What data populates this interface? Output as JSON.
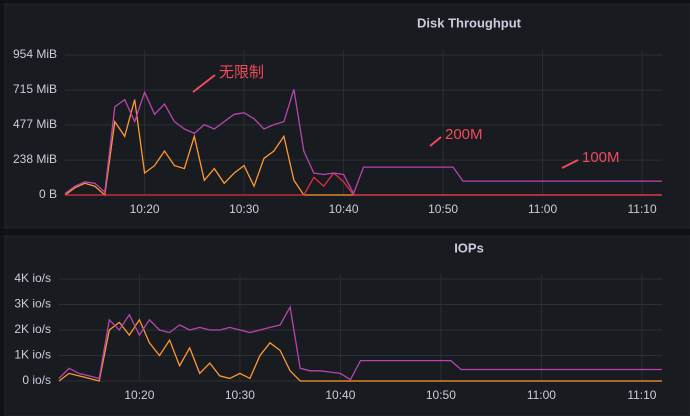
{
  "chart_data": [
    {
      "type": "line",
      "title": "Disk Throughput",
      "x": [
        612,
        613,
        614,
        615,
        616,
        617,
        618,
        619,
        620,
        621,
        622,
        623,
        624,
        625,
        626,
        627,
        628,
        629,
        630,
        631,
        632,
        633,
        634,
        635,
        636,
        637,
        638,
        639,
        640,
        641,
        642,
        643,
        644,
        645,
        646,
        647,
        648,
        649,
        650,
        651,
        652,
        653,
        654,
        655,
        656,
        657,
        658,
        659,
        660,
        661,
        662,
        663,
        664,
        665,
        666,
        667,
        668,
        669,
        670,
        671,
        672
      ],
      "xlim": [
        612,
        672
      ],
      "xticks": [
        {
          "value": 620,
          "label": "10:20"
        },
        {
          "value": 630,
          "label": "10:30"
        },
        {
          "value": 640,
          "label": "10:40"
        },
        {
          "value": 650,
          "label": "10:50"
        },
        {
          "value": 660,
          "label": "11:00"
        },
        {
          "value": 670,
          "label": "11:10"
        }
      ],
      "ylim": [
        0,
        954
      ],
      "yticks": [
        {
          "value": 0,
          "label": "0 B"
        },
        {
          "value": 238,
          "label": "238 MiB"
        },
        {
          "value": 477,
          "label": "477 MiB"
        },
        {
          "value": 715,
          "label": "715 MiB"
        },
        {
          "value": 954,
          "label": "954 MiB"
        }
      ],
      "grid": true,
      "annotations": [
        "无限制",
        "200M",
        "100M"
      ],
      "series": [
        {
          "color": "#ff9830",
          "values": [
            0,
            50,
            80,
            60,
            0,
            500,
            400,
            650,
            150,
            200,
            300,
            200,
            180,
            400,
            100,
            180,
            80,
            150,
            200,
            60,
            250,
            300,
            400,
            100,
            0,
            0,
            0,
            0,
            0,
            0,
            0,
            0,
            0,
            0,
            0,
            0,
            0,
            0,
            0,
            0,
            0,
            0,
            0,
            0,
            0,
            0,
            0,
            0,
            0,
            0,
            0,
            0,
            0,
            0,
            0,
            0,
            0,
            0,
            0,
            0,
            0
          ]
        },
        {
          "color": "#e02f44",
          "values": [
            0,
            0,
            0,
            0,
            0,
            0,
            0,
            0,
            0,
            0,
            0,
            0,
            0,
            0,
            0,
            0,
            0,
            0,
            0,
            0,
            0,
            0,
            0,
            0,
            0,
            120,
            60,
            150,
            90,
            0,
            0,
            0,
            0,
            0,
            0,
            0,
            0,
            0,
            0,
            0,
            0,
            0,
            0,
            0,
            0,
            0,
            0,
            0,
            0,
            0,
            0,
            0,
            0,
            0,
            0,
            0,
            0,
            0,
            0,
            0,
            0
          ]
        },
        {
          "color": "#b845ad",
          "values": [
            10,
            60,
            90,
            80,
            20,
            600,
            650,
            500,
            700,
            550,
            620,
            500,
            450,
            420,
            480,
            450,
            500,
            550,
            560,
            520,
            450,
            480,
            500,
            720,
            300,
            150,
            140,
            150,
            140,
            10,
            190,
            190,
            190,
            190,
            190,
            190,
            190,
            190,
            190,
            190,
            95,
            95,
            95,
            95,
            95,
            95,
            95,
            95,
            95,
            95,
            95,
            95,
            95,
            95,
            95,
            95,
            95,
            95,
            95,
            95,
            95
          ]
        }
      ]
    },
    {
      "type": "line",
      "title": "IOPs",
      "x": [
        612,
        613,
        614,
        615,
        616,
        617,
        618,
        619,
        620,
        621,
        622,
        623,
        624,
        625,
        626,
        627,
        628,
        629,
        630,
        631,
        632,
        633,
        634,
        635,
        636,
        637,
        638,
        639,
        640,
        641,
        642,
        643,
        644,
        645,
        646,
        647,
        648,
        649,
        650,
        651,
        652,
        653,
        654,
        655,
        656,
        657,
        658,
        659,
        660,
        661,
        662,
        663,
        664,
        665,
        666,
        667,
        668,
        669,
        670,
        671,
        672
      ],
      "xlim": [
        612,
        672
      ],
      "xticks": [
        {
          "value": 620,
          "label": "10:20"
        },
        {
          "value": 630,
          "label": "10:30"
        },
        {
          "value": 640,
          "label": "10:40"
        },
        {
          "value": 650,
          "label": "10:50"
        },
        {
          "value": 660,
          "label": "11:00"
        },
        {
          "value": 670,
          "label": "11:10"
        }
      ],
      "ylim": [
        0,
        4000
      ],
      "yticks": [
        {
          "value": 0,
          "label": "0 io/s"
        },
        {
          "value": 1000,
          "label": "1K io/s"
        },
        {
          "value": 2000,
          "label": "2K io/s"
        },
        {
          "value": 3000,
          "label": "3K io/s"
        },
        {
          "value": 4000,
          "label": "4K io/s"
        }
      ],
      "grid": true,
      "series": [
        {
          "color": "#ff9830",
          "values": [
            0,
            300,
            200,
            100,
            0,
            2000,
            2300,
            1800,
            2400,
            1500,
            1000,
            1600,
            600,
            1300,
            300,
            700,
            200,
            100,
            300,
            100,
            1000,
            1500,
            1200,
            400,
            0,
            0,
            0,
            0,
            0,
            0,
            0,
            0,
            0,
            0,
            0,
            0,
            0,
            0,
            0,
            0,
            0,
            0,
            0,
            0,
            0,
            0,
            0,
            0,
            0,
            0,
            0,
            0,
            0,
            0,
            0,
            0,
            0,
            0,
            0,
            0,
            0
          ]
        },
        {
          "color": "#b845ad",
          "values": [
            100,
            500,
            300,
            200,
            100,
            2400,
            2000,
            2600,
            1800,
            2400,
            2000,
            1900,
            2200,
            2000,
            2100,
            2000,
            2000,
            2100,
            2000,
            1900,
            2000,
            2100,
            2200,
            2900,
            500,
            400,
            400,
            350,
            300,
            50,
            800,
            800,
            800,
            800,
            800,
            800,
            800,
            800,
            800,
            800,
            450,
            450,
            450,
            450,
            450,
            450,
            450,
            450,
            450,
            450,
            450,
            450,
            450,
            450,
            450,
            450,
            450,
            450,
            450,
            450,
            450
          ]
        }
      ]
    }
  ]
}
